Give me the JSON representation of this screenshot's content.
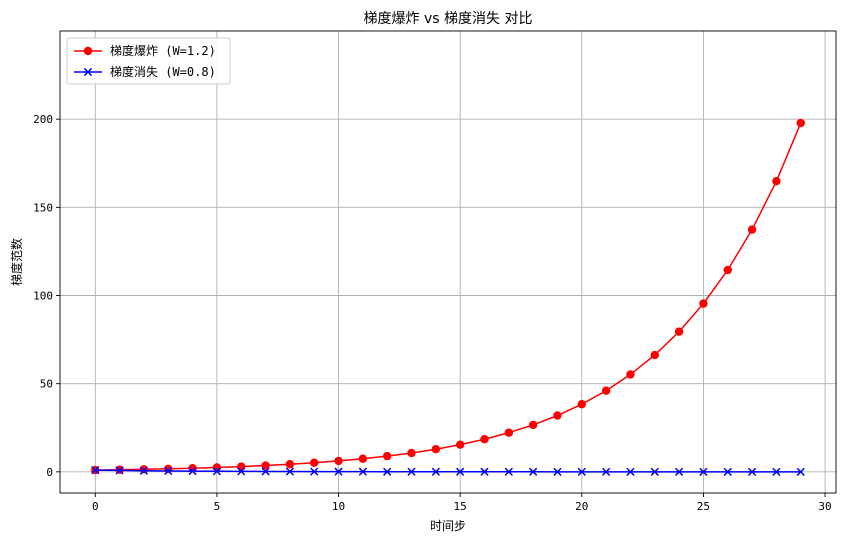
{
  "chart_data": {
    "type": "line",
    "title": "梯度爆炸 vs 梯度消失 对比",
    "xlabel": "时间步",
    "ylabel": "梯度范数",
    "xlim": [
      -1.45,
      30.45
    ],
    "ylim": [
      -12,
      250
    ],
    "xticks": [
      0,
      5,
      10,
      15,
      20,
      25,
      30
    ],
    "yticks": [
      0,
      50,
      100,
      150,
      200
    ],
    "grid": true,
    "legend": "upper-left",
    "x": [
      0,
      1,
      2,
      3,
      4,
      5,
      6,
      7,
      8,
      9,
      10,
      11,
      12,
      13,
      14,
      15,
      16,
      17,
      18,
      19,
      20,
      21,
      22,
      23,
      24,
      25,
      26,
      27,
      28,
      29
    ],
    "series": [
      {
        "name": "梯度爆炸 (W=1.2)",
        "color": "#ff0000",
        "marker": "circle",
        "values": [
          1.0,
          1.2,
          1.44,
          1.73,
          2.07,
          2.49,
          2.99,
          3.58,
          4.3,
          5.16,
          6.19,
          7.43,
          8.92,
          10.7,
          12.84,
          15.41,
          18.49,
          22.19,
          26.62,
          31.95,
          38.34,
          46.01,
          55.21,
          66.25,
          79.5,
          95.4,
          114.48,
          137.37,
          164.84,
          197.81
        ]
      },
      {
        "name": "梯度消失 (W=0.8)",
        "color": "#0000ff",
        "marker": "x",
        "values": [
          1.0,
          0.8,
          0.64,
          0.51,
          0.41,
          0.33,
          0.26,
          0.21,
          0.17,
          0.13,
          0.11,
          0.09,
          0.07,
          0.05,
          0.04,
          0.04,
          0.03,
          0.02,
          0.02,
          0.01,
          0.01,
          0.01,
          0.01,
          0.01,
          0.0,
          0.0,
          0.0,
          0.0,
          0.0,
          0.0
        ]
      }
    ]
  }
}
